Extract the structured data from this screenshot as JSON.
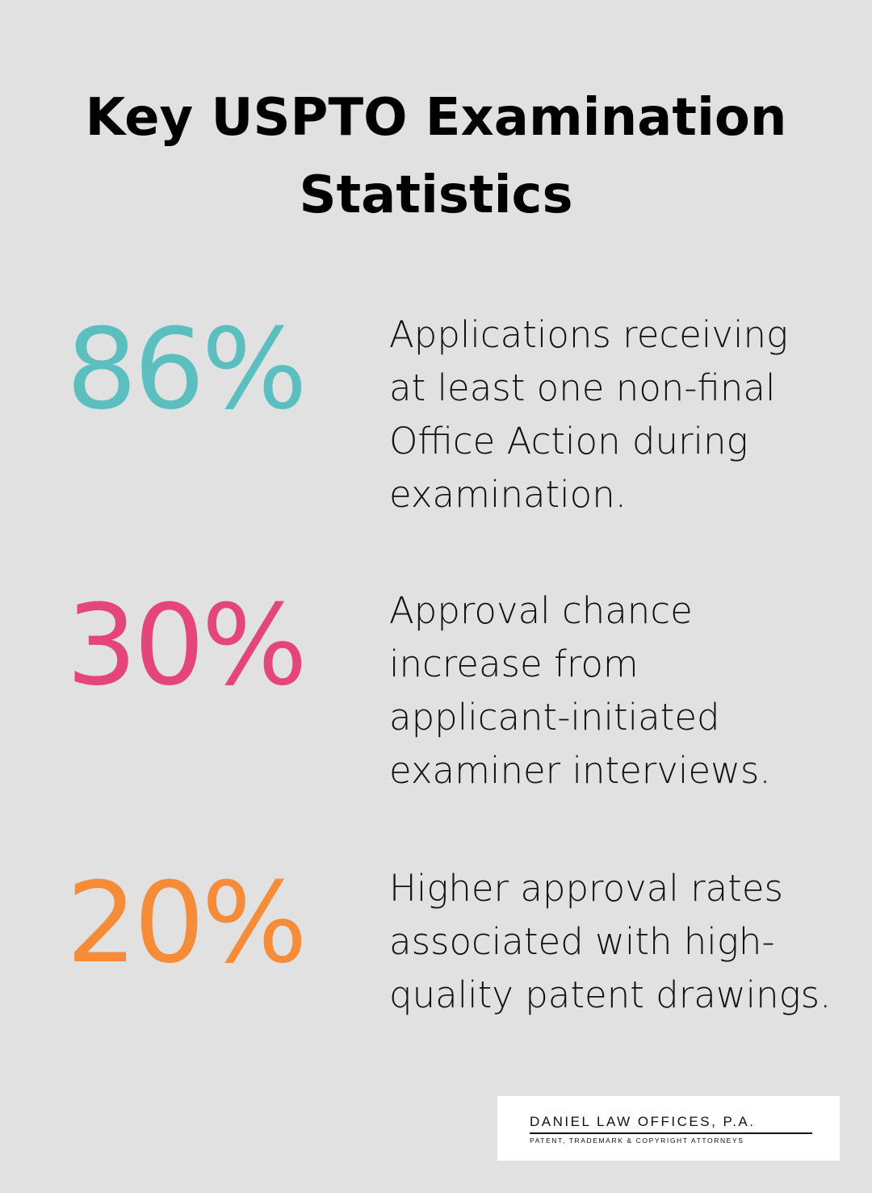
{
  "header": {
    "title": [
      "Key USPTO Examination",
      "Statistics"
    ]
  },
  "stats": [
    {
      "value": "86%",
      "color": "#5bbfc0",
      "description": [
        "Applications receiving",
        "at least one non-final",
        "Office Action during",
        "examination."
      ]
    },
    {
      "value": "30%",
      "color": "#e4467a",
      "description": [
        "Approval chance",
        "increase from",
        "applicant-initiated",
        "examiner interviews."
      ]
    },
    {
      "value": "20%",
      "color": "#f68b38",
      "description": [
        "Higher approval rates",
        "associated with high-",
        "quality patent drawings."
      ]
    }
  ],
  "logo": {
    "name": "DANIEL LAW OFFICES, P.A.",
    "tagline": "PATENT, TRADEMARK & COPYRIGHT ATTORNEYS"
  }
}
